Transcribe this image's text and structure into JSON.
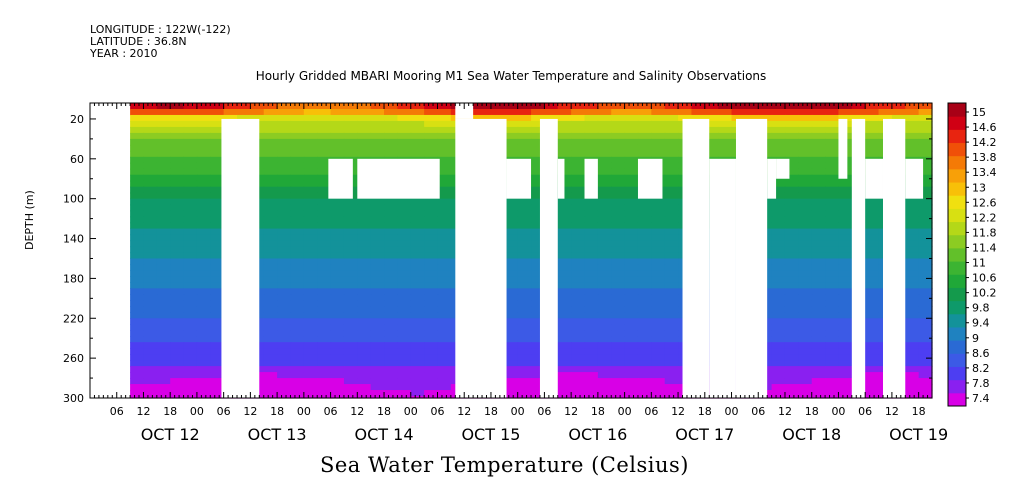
{
  "metadata": {
    "longitude": "LONGITUDE : 122W(-122)",
    "latitude": "LATITUDE : 36.8N",
    "year": "YEAR : 2010"
  },
  "footer_label": "Sea Water Temperature (Celsius)",
  "colors": {
    "gap": "#ffffff",
    "scale": [
      "#d800e6",
      "#8a20f0",
      "#4d3ef2",
      "#3c5ae6",
      "#2a6ad4",
      "#1f82c0",
      "#13929a",
      "#0e9a6a",
      "#149a4c",
      "#20a838",
      "#3cb432",
      "#62c02a",
      "#8ccc22",
      "#b4d818",
      "#d8e012",
      "#f0e010",
      "#f8c008",
      "#f8a008",
      "#f47a06",
      "#f05008",
      "#e82410",
      "#d00014",
      "#a80016"
    ]
  },
  "chart_data": {
    "type": "heatmap",
    "title": "Hourly Gridded MBARI Mooring M1 Sea Water Temperature and Salinity Observations",
    "ylabel": "DEPTH (m)",
    "xlabel": "",
    "x_tick_labels": [
      "06",
      "12",
      "18",
      "00",
      "06",
      "12",
      "18",
      "00",
      "06",
      "12",
      "18",
      "00",
      "06",
      "12",
      "18",
      "00",
      "06",
      "12",
      "18",
      "00",
      "06",
      "12",
      "18",
      "00",
      "06",
      "12",
      "18",
      "00",
      "06",
      "12",
      "18",
      "00"
    ],
    "x_major_labels": [
      "OCT 12",
      "OCT 13",
      "OCT 14",
      "OCT 15",
      "OCT 16",
      "OCT 17",
      "OCT 18",
      "OCT 19"
    ],
    "y_tick_labels": [
      "20",
      "60",
      "100",
      "140",
      "180",
      "220",
      "260",
      "300"
    ],
    "x_range_hours": [
      0,
      189
    ],
    "ylim": [
      300,
      4
    ],
    "y_reversed": true,
    "colorbar_labels": [
      "15",
      "14.6",
      "14.2",
      "13.8",
      "13.4",
      "13",
      "12.6",
      "12.2",
      "11.8",
      "11.4",
      "11",
      "10.6",
      "10.2",
      "9.8",
      "9.4",
      "9",
      "8.6",
      "8.2",
      "7.8",
      "7.4"
    ],
    "colorbar_range": [
      7.2,
      15.2
    ],
    "profile_depths_m": [
      10,
      20,
      40,
      60,
      80,
      100,
      140,
      180,
      220,
      260,
      300
    ],
    "profile_temperatures_c": [
      14.2,
      12.2,
      11.4,
      11.0,
      10.6,
      10.0,
      9.5,
      9.1,
      8.6,
      8.0,
      7.5
    ],
    "data_start_hour": 9,
    "gaps_full_depth": [
      [
        29.5,
        38
      ],
      [
        41.5,
        48
      ],
      [
        82,
        93.5
      ],
      [
        101,
        106.5
      ],
      [
        108,
        109.5
      ],
      [
        114,
        116
      ],
      [
        133,
        152
      ],
      [
        159,
        164
      ],
      [
        168,
        174
      ],
      [
        178,
        183
      ]
    ],
    "gaps_partial": [
      {
        "hours": [
          29.5,
          38
        ],
        "depth_from": 20,
        "depth_to": 300
      },
      {
        "hours": [
          53.5,
          59
        ],
        "depth_from": 60,
        "depth_to": 100
      },
      {
        "hours": [
          60,
          78.5
        ],
        "depth_from": 60,
        "depth_to": 100
      },
      {
        "hours": [
          82,
          86
        ],
        "depth_from": 4,
        "depth_to": 20
      },
      {
        "hours": [
          82,
          93.5
        ],
        "depth_from": 20,
        "depth_to": 300
      },
      {
        "hours": [
          93.5,
          99
        ],
        "depth_from": 60,
        "depth_to": 100
      },
      {
        "hours": [
          101,
          105
        ],
        "depth_from": 20,
        "depth_to": 300
      },
      {
        "hours": [
          105,
          106.5
        ],
        "depth_from": 60,
        "depth_to": 100
      },
      {
        "hours": [
          111,
          114
        ],
        "depth_from": 60,
        "depth_to": 100
      },
      {
        "hours": [
          123,
          128.5
        ],
        "depth_from": 60,
        "depth_to": 100
      },
      {
        "hours": [
          133,
          139
        ],
        "depth_from": 20,
        "depth_to": 300
      },
      {
        "hours": [
          139,
          145
        ],
        "depth_from": 60,
        "depth_to": 300
      },
      {
        "hours": [
          145,
          152
        ],
        "depth_from": 20,
        "depth_to": 300
      },
      {
        "hours": [
          152,
          154
        ],
        "depth_from": 60,
        "depth_to": 100
      },
      {
        "hours": [
          154,
          157
        ],
        "depth_from": 60,
        "depth_to": 80
      },
      {
        "hours": [
          168,
          170
        ],
        "depth_from": 20,
        "depth_to": 80
      },
      {
        "hours": [
          171,
          174
        ],
        "depth_from": 20,
        "depth_to": 300
      },
      {
        "hours": [
          174,
          178
        ],
        "depth_from": 60,
        "depth_to": 100
      },
      {
        "hours": [
          178,
          183
        ],
        "depth_from": 20,
        "depth_to": 300
      },
      {
        "hours": [
          183,
          187
        ],
        "depth_from": 60,
        "depth_to": 100
      }
    ]
  }
}
